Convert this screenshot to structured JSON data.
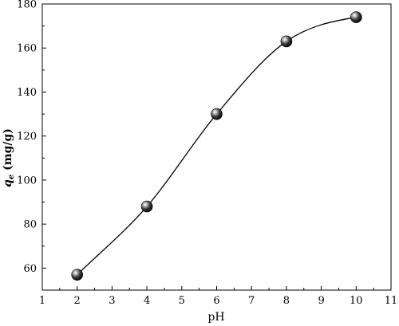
{
  "chart_data": {
    "type": "scatter",
    "xlabel": "pH",
    "ylabel": {
      "symbol": "q",
      "subscript": "e",
      "unit": " (mg/g)"
    },
    "xlim": [
      1,
      11
    ],
    "ylim": [
      50,
      180
    ],
    "xticks": [
      1,
      2,
      3,
      4,
      5,
      6,
      7,
      8,
      9,
      10,
      11
    ],
    "yticks": [
      60,
      80,
      100,
      120,
      140,
      160,
      180
    ],
    "grid": false,
    "legend": "none",
    "series": [
      {
        "points": [
          {
            "x": 2,
            "y": 57
          },
          {
            "x": 4,
            "y": 88
          },
          {
            "x": 6,
            "y": 130
          },
          {
            "x": 8,
            "y": 163
          },
          {
            "x": 10,
            "y": 174
          }
        ],
        "fit_curve": true,
        "marker": "sphere",
        "color": "#000000"
      }
    ]
  }
}
